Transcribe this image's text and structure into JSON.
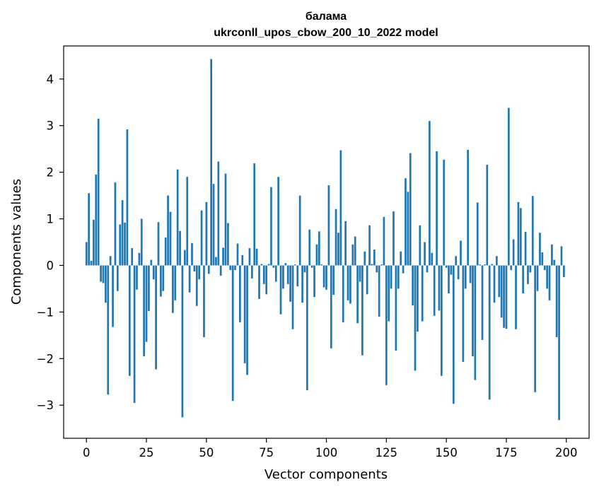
{
  "chart_data": {
    "type": "bar",
    "title": "балама\nukrconll_upos_cbow_200_10_2022 model",
    "xlabel": "Vector components",
    "ylabel": "Components values",
    "xlim": [
      -9.5,
      209.5
    ],
    "ylim": [
      -3.71,
      4.71
    ],
    "xticks": [
      0,
      25,
      50,
      75,
      100,
      125,
      150,
      175,
      200
    ],
    "xtick_labels": [
      "0",
      "25",
      "50",
      "75",
      "100",
      "125",
      "150",
      "175",
      "200"
    ],
    "yticks": [
      -3,
      -2,
      -1,
      0,
      1,
      2,
      3,
      4
    ],
    "ytick_labels": [
      "−3",
      "−2",
      "−1",
      "0",
      "1",
      "2",
      "3",
      "4"
    ],
    "grid": false,
    "color": "#1f77b4",
    "x": [
      0,
      1,
      2,
      3,
      4,
      5,
      6,
      7,
      8,
      9,
      10,
      11,
      12,
      13,
      14,
      15,
      16,
      17,
      18,
      19,
      20,
      21,
      22,
      23,
      24,
      25,
      26,
      27,
      28,
      29,
      30,
      31,
      32,
      33,
      34,
      35,
      36,
      37,
      38,
      39,
      40,
      41,
      42,
      43,
      44,
      45,
      46,
      47,
      48,
      49,
      50,
      51,
      52,
      53,
      54,
      55,
      56,
      57,
      58,
      59,
      60,
      61,
      62,
      63,
      64,
      65,
      66,
      67,
      68,
      69,
      70,
      71,
      72,
      73,
      74,
      75,
      76,
      77,
      78,
      79,
      80,
      81,
      82,
      83,
      84,
      85,
      86,
      87,
      88,
      89,
      90,
      91,
      92,
      93,
      94,
      95,
      96,
      97,
      98,
      99,
      100,
      101,
      102,
      103,
      104,
      105,
      106,
      107,
      108,
      109,
      110,
      111,
      112,
      113,
      114,
      115,
      116,
      117,
      118,
      119,
      120,
      121,
      122,
      123,
      124,
      125,
      126,
      127,
      128,
      129,
      130,
      131,
      132,
      133,
      134,
      135,
      136,
      137,
      138,
      139,
      140,
      141,
      142,
      143,
      144,
      145,
      146,
      147,
      148,
      149,
      150,
      151,
      152,
      153,
      154,
      155,
      156,
      157,
      158,
      159,
      160,
      161,
      162,
      163,
      164,
      165,
      166,
      167,
      168,
      169,
      170,
      171,
      172,
      173,
      174,
      175,
      176,
      177,
      178,
      179,
      180,
      181,
      182,
      183,
      184,
      185,
      186,
      187,
      188,
      189,
      190,
      191,
      192,
      193,
      194,
      195,
      196,
      197,
      198,
      199
    ],
    "values": [
      0.5,
      1.55,
      0.1,
      0.98,
      1.95,
      3.15,
      -0.35,
      -0.38,
      -0.8,
      -2.77,
      0.2,
      -1.32,
      1.78,
      -0.55,
      0.88,
      1.4,
      0.92,
      2.92,
      -2.37,
      0.37,
      -2.95,
      -0.52,
      0.27,
      1.0,
      -1.95,
      -1.64,
      -0.98,
      0.12,
      -0.3,
      -2.23,
      0.93,
      -0.67,
      -0.55,
      0.6,
      1.5,
      1.15,
      -1.02,
      -0.75,
      2.06,
      0.74,
      -3.26,
      0.33,
      1.9,
      -0.58,
      0.48,
      -0.13,
      -0.87,
      -0.3,
      1.18,
      -1.54,
      1.36,
      -0.18,
      4.43,
      1.75,
      0.18,
      2.23,
      -0.22,
      0.38,
      1.97,
      0.91,
      -0.1,
      -2.91,
      -0.1,
      0.47,
      -1.22,
      0.22,
      -2.1,
      -2.35,
      0.37,
      -0.28,
      2.19,
      0.36,
      -0.72,
      0.03,
      -0.4,
      -0.62,
      0.03,
      1.68,
      -0.05,
      -0.35,
      1.9,
      -1.05,
      -0.5,
      0.05,
      -0.4,
      -0.78,
      -1.37,
      0.02,
      -0.45,
      1.5,
      -0.8,
      -0.15,
      -2.68,
      0.77,
      -0.05,
      -0.68,
      0.45,
      0.73,
      0.02,
      -0.47,
      -0.52,
      1.72,
      -1.78,
      -0.63,
      1.21,
      0.7,
      2.47,
      -1.22,
      0.95,
      -0.75,
      -0.82,
      0.45,
      0.62,
      -1.24,
      -0.35,
      -1.93,
      0.3,
      -0.62,
      0.86,
      0.03,
      0.34,
      -0.15,
      -1.1,
      0.02,
      1.04,
      -2.57,
      -1.2,
      -0.5,
      1.16,
      -1.83,
      -0.5,
      0.3,
      -0.17,
      1.87,
      1.58,
      2.41,
      -0.86,
      -2.26,
      -1.42,
      0.86,
      -1.2,
      0.5,
      -0.15,
      3.1,
      0.27,
      -1.08,
      2.45,
      -0.97,
      -2.37,
      2.27,
      -0.05,
      -0.6,
      -0.2,
      -2.97,
      0.2,
      -0.3,
      0.53,
      -2.07,
      -0.5,
      2.48,
      -0.38,
      -1.95,
      -2.46,
      1.35,
      0.02,
      -1.6,
      0.02,
      2.16,
      -2.88,
      0.03,
      -0.8,
      0.2,
      -0.68,
      -1.12,
      -1.34,
      -1.36,
      3.38,
      -0.1,
      0.56,
      -1.37,
      1.36,
      1.23,
      -0.6,
      0.72,
      -0.4,
      -0.15,
      1.49,
      -2.72,
      -0.55,
      0.7,
      0.28,
      -0.1,
      -0.5,
      -0.75,
      0.45,
      0.12,
      -1.54,
      -3.32,
      0.41,
      -0.25
    ]
  }
}
